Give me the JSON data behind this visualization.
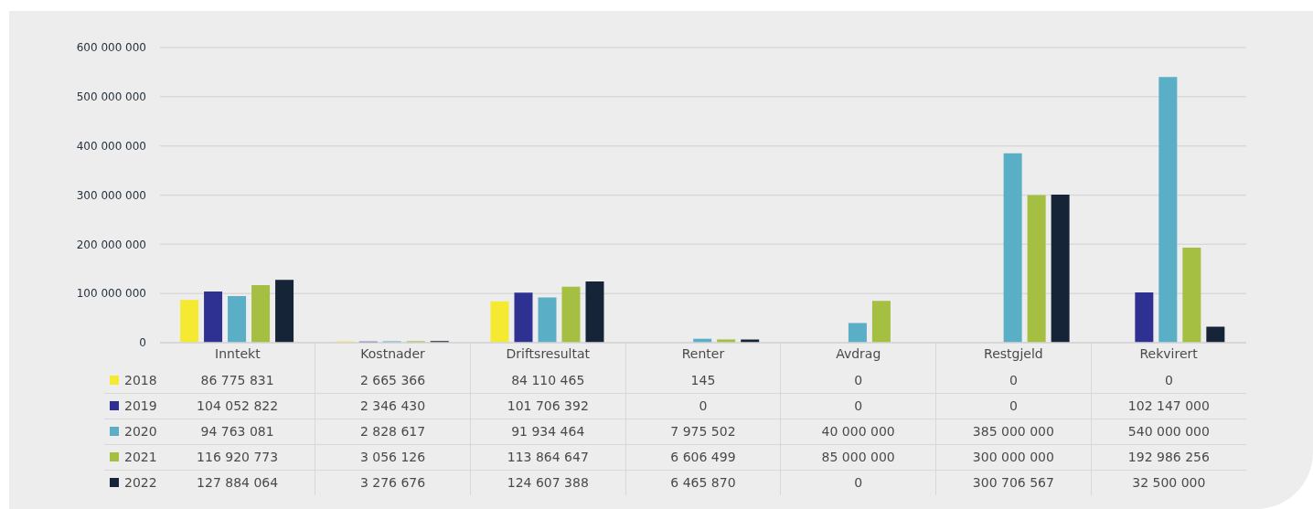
{
  "chart_data": {
    "type": "bar",
    "categories": [
      "Inntekt",
      "Kostnader",
      "Driftsresultat",
      "Renter",
      "Avdrag",
      "Restgjeld",
      "Rekvirert"
    ],
    "series": [
      {
        "name": "2018",
        "color": "#f6e932",
        "values": [
          86775831,
          2665366,
          84110465,
          145,
          0,
          0,
          0
        ]
      },
      {
        "name": "2019",
        "color": "#2e3192",
        "values": [
          104052822,
          2346430,
          101706392,
          0,
          0,
          0,
          102147000
        ]
      },
      {
        "name": "2020",
        "color": "#5aaec6",
        "values": [
          94763081,
          2828617,
          91934464,
          7975502,
          40000000,
          385000000,
          540000000
        ]
      },
      {
        "name": "2021",
        "color": "#a4bf42",
        "values": [
          116920773,
          3056126,
          113864647,
          6606499,
          85000000,
          300000000,
          192986256
        ]
      },
      {
        "name": "2022",
        "color": "#152437",
        "values": [
          127884064,
          3276676,
          124607388,
          6465870,
          0,
          300706567,
          32500000
        ]
      }
    ],
    "ylim": [
      0,
      600000000
    ],
    "yticks": [
      0,
      100000000,
      200000000,
      300000000,
      400000000,
      500000000,
      600000000
    ],
    "grid": "y",
    "legend": "bottom left",
    "data_labels": true
  }
}
